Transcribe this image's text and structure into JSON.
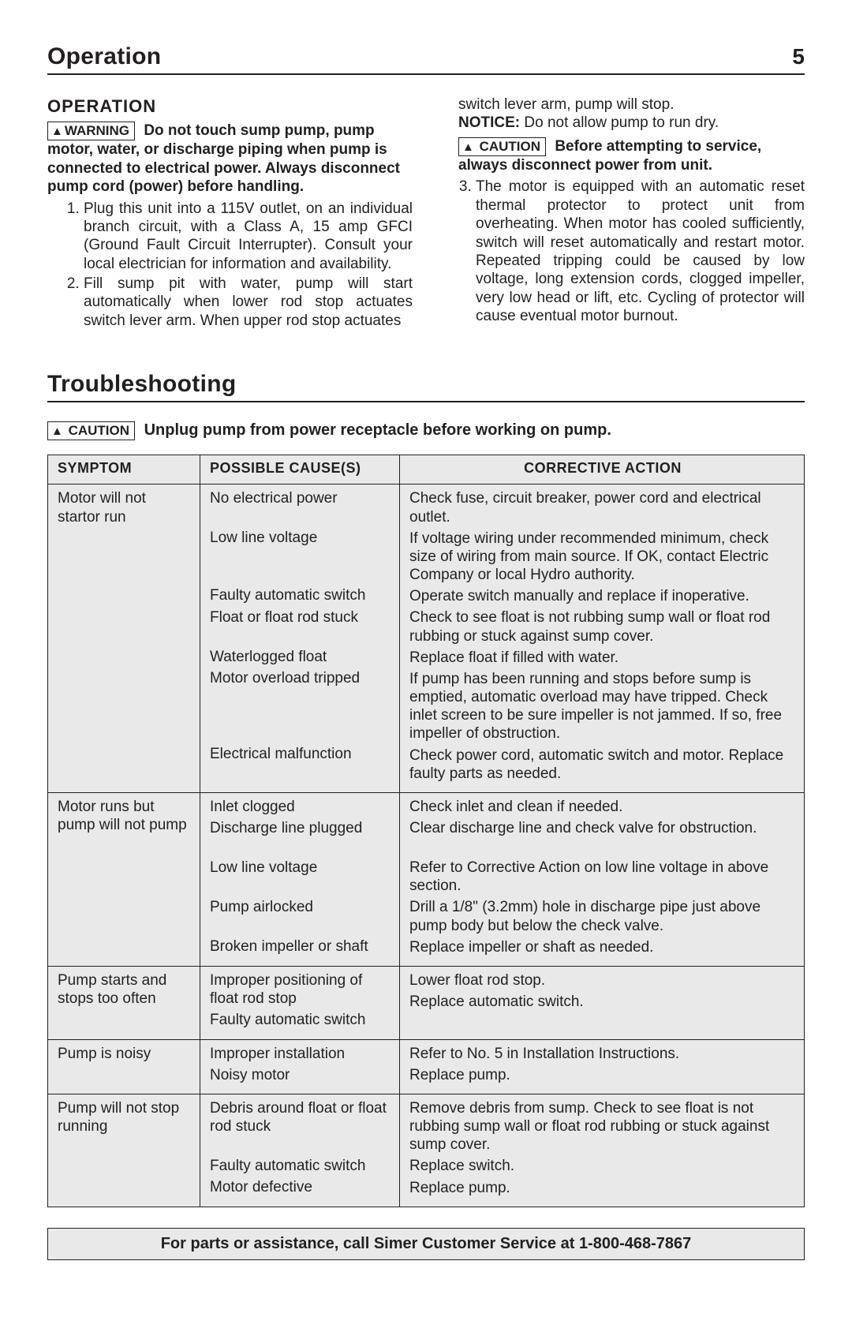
{
  "header": {
    "title": "Operation",
    "page_number": "5"
  },
  "operation": {
    "heading": "OPERATION",
    "warning_label": "WARNING",
    "warning_text": "Do not touch sump pump, pump motor, water, or discharge piping when pump is connected to electrical power. Always disconnect pump cord (power) before handling.",
    "steps": [
      "Plug this unit into a 115V outlet, on an individual branch circuit, with a Class A, 15 amp GFCI (Ground Fault Circuit Interrupter). Consult your local electrician for information and availability.",
      "Fill sump pit with water, pump will start automatically when lower rod stop actuates switch lever arm. When upper rod stop actuates"
    ],
    "col2_continuation": "switch lever arm, pump will stop.",
    "notice_label": "NOTICE:",
    "notice_text": " Do not allow pump to run dry.",
    "caution_label": "CAUTION",
    "caution_text": "Before attempting to service, always disconnect power from unit.",
    "step3": "The motor is equipped with an automatic reset thermal protector to protect unit from overheating. When motor has cooled sufficiently, switch will reset automatically and restart motor. Repeated tripping could be caused by low voltage, long extension cords, clogged impeller, very low head or lift, etc. Cycling of protector will cause eventual motor burnout."
  },
  "troubleshooting": {
    "heading": "Troubleshooting",
    "caution_label": "CAUTION",
    "caution_text": "Unplug pump from power receptacle before working on pump.",
    "columns": {
      "symptom": "SYMPTOM",
      "cause": "POSSIBLE CAUSE(S)",
      "action": "CORRECTIVE ACTION"
    },
    "rows": [
      {
        "symptom": "Motor will not startor run",
        "pairs": [
          {
            "cause": "No electrical power",
            "action": "Check fuse, circuit breaker, power cord and electrical outlet."
          },
          {
            "cause": "Low line voltage",
            "action": "If voltage wiring under recommended minimum, check size of wiring from main source. If OK, contact Electric Company or local Hydro authority."
          },
          {
            "cause": "Faulty automatic switch",
            "action": "Operate switch manually and replace if inoperative."
          },
          {
            "cause": "Float or float rod stuck",
            "action": "Check to see float is not rubbing sump wall or float rod rubbing or stuck against sump cover."
          },
          {
            "cause": "Waterlogged float",
            "action": "Replace float if filled with water."
          },
          {
            "cause": "Motor overload tripped",
            "action": "If pump has been running and stops before sump is emptied, automatic overload may have tripped. Check inlet screen to be sure impeller is not jammed. If so, free impeller of obstruction."
          },
          {
            "cause": "Electrical malfunction",
            "action": "Check power cord, automatic switch and motor. Replace faulty parts as needed."
          }
        ]
      },
      {
        "symptom": "Motor runs but pump will not pump",
        "pairs": [
          {
            "cause": "Inlet clogged",
            "action": "Check inlet and clean if needed."
          },
          {
            "cause": "Discharge line plugged",
            "action": "Clear discharge line and check valve for obstruction."
          },
          {
            "cause": "Low line voltage",
            "action": "Refer to Corrective Action on low line voltage in above section."
          },
          {
            "cause": "Pump airlocked",
            "action": "Drill a 1/8\" (3.2mm) hole in discharge pipe just above pump body but below the check valve."
          },
          {
            "cause": "Broken impeller or shaft",
            "action": "Replace impeller or shaft as needed."
          }
        ]
      },
      {
        "symptom": "Pump starts and stops too often",
        "pairs": [
          {
            "cause": "Improper positioning of float rod stop",
            "action": "Lower float rod stop."
          },
          {
            "cause": "Faulty automatic switch",
            "action": "Replace automatic switch."
          }
        ]
      },
      {
        "symptom": "Pump is noisy",
        "pairs": [
          {
            "cause": "Improper installation",
            "action": "Refer to No. 5  in Installation Instructions."
          },
          {
            "cause": "Noisy motor",
            "action": "Replace pump."
          }
        ]
      },
      {
        "symptom": "Pump will not stop running",
        "pairs": [
          {
            "cause": "Debris around float or float rod stuck",
            "action": "Remove debris from sump. Check to see float is not rubbing sump wall or float rod rubbing or stuck against sump cover."
          },
          {
            "cause": "Faulty automatic switch",
            "action": "Replace switch."
          },
          {
            "cause": "Motor defective",
            "action": "Replace pump."
          }
        ]
      }
    ]
  },
  "footer": {
    "text": "For parts or assistance, call Simer Customer Service at 1-800-468-7867"
  }
}
